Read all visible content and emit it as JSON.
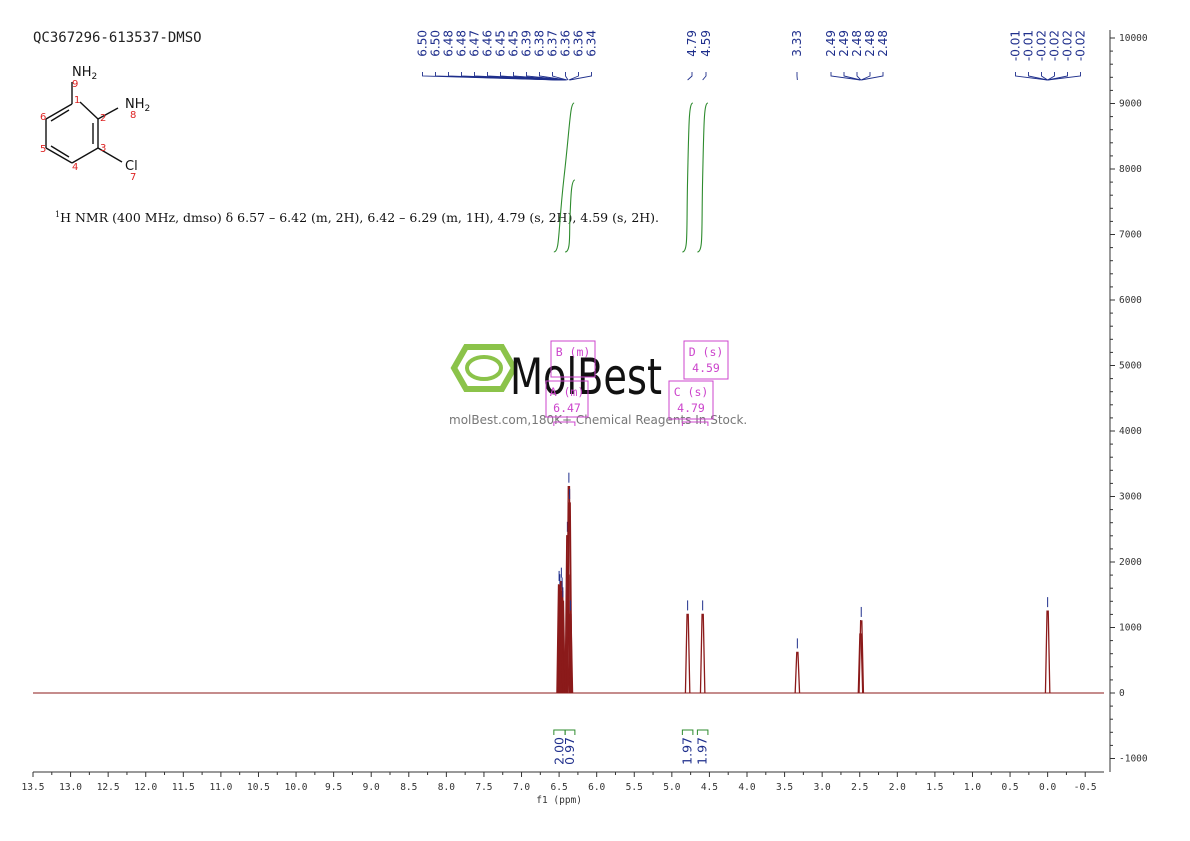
{
  "sample_title": "QC367296-613537-DMSO",
  "structure": {
    "atoms": [
      {
        "text": "NH",
        "sub": "2",
        "num": "9"
      },
      {
        "text": "NH",
        "sub": "2",
        "num": "8"
      },
      {
        "text": "Cl",
        "sub": "",
        "num": "7"
      }
    ],
    "ring_numbers": [
      "1",
      "2",
      "3",
      "4",
      "5",
      "6"
    ]
  },
  "nmr_description": {
    "sup": "1",
    "text": "H NMR (400 MHz, dmso) δ 6.57 – 6.42 (m, 2H), 6.42 – 6.29 (m, 1H), 4.79 (s, 2H), 4.59 (s, 2H)."
  },
  "watermark": {
    "brand": "MolBest",
    "tagline": "molBest.com,180K+ Chemical Reagents In Stock."
  },
  "colors": {
    "spectrum": "#8b1a1a",
    "peak_labels": "#1f2f8c",
    "integral": "#2e8b2e",
    "multiplet_box": "#cc44cc",
    "watermark": "#8bc34a"
  },
  "chart_data": {
    "type": "line",
    "xlabel": "f1 (ppm)",
    "x_ticks": [
      "13.5",
      "13.0",
      "12.5",
      "12.0",
      "11.5",
      "11.0",
      "10.5",
      "10.0",
      "9.5",
      "9.0",
      "8.5",
      "8.0",
      "7.5",
      "7.0",
      "6.5",
      "6.0",
      "5.5",
      "5.0",
      "4.5",
      "4.0",
      "3.5",
      "3.0",
      "2.5",
      "2.0",
      "1.5",
      "1.0",
      "0.5",
      "0.0",
      "-0.5"
    ],
    "xlim": [
      13.5,
      -0.75
    ],
    "y_ticks": [
      "10000",
      "9000",
      "8000",
      "7000",
      "6000",
      "5000",
      "4000",
      "3000",
      "2000",
      "1000",
      "0",
      "-1000"
    ],
    "ylim": [
      -1200,
      10100
    ],
    "peaks": [
      {
        "ppm": 6.5,
        "height": 1650
      },
      {
        "ppm": 6.49,
        "height": 1600
      },
      {
        "ppm": 6.48,
        "height": 1500
      },
      {
        "ppm": 6.47,
        "height": 1700
      },
      {
        "ppm": 6.46,
        "height": 1550
      },
      {
        "ppm": 6.45,
        "height": 1400
      },
      {
        "ppm": 6.39,
        "height": 2400
      },
      {
        "ppm": 6.38,
        "height": 1800
      },
      {
        "ppm": 6.37,
        "height": 3150
      },
      {
        "ppm": 6.36,
        "height": 2900
      },
      {
        "ppm": 6.35,
        "height": 1200
      },
      {
        "ppm": 4.79,
        "height": 1200
      },
      {
        "ppm": 4.59,
        "height": 1200
      },
      {
        "ppm": 3.33,
        "height": 620
      },
      {
        "ppm": 2.49,
        "height": 900
      },
      {
        "ppm": 2.48,
        "height": 1100
      },
      {
        "ppm": 0.0,
        "height": 1250
      }
    ],
    "peak_label_groups": [
      {
        "labels": [
          "6.50",
          "6.50",
          "6.48",
          "6.48",
          "6.47",
          "6.46",
          "6.45",
          "6.45",
          "6.39",
          "6.38",
          "6.37",
          "6.36",
          "6.36",
          "6.34"
        ],
        "target_ppm": [
          6.5,
          6.36
        ]
      },
      {
        "labels": [
          "4.79"
        ],
        "target_ppm": [
          4.79,
          4.79
        ]
      },
      {
        "labels": [
          "4.59"
        ],
        "target_ppm": [
          4.59,
          4.59
        ]
      },
      {
        "labels": [
          "3.33"
        ],
        "target_ppm": [
          3.33,
          3.33
        ]
      },
      {
        "labels": [
          "2.49",
          "2.49",
          "2.48",
          "2.48",
          "2.48"
        ],
        "target_ppm": [
          2.49,
          2.48
        ]
      },
      {
        "labels": [
          "-0.01",
          "-0.01",
          "-0.02",
          "-0.02",
          "-0.02",
          "-0.02"
        ],
        "target_ppm": [
          0.0,
          0.0
        ]
      }
    ],
    "multiplets": [
      {
        "letter": "B",
        "type": "(m)",
        "value": "",
        "ppm": 6.36
      },
      {
        "letter": "A",
        "type": "(m)",
        "value": "6.47",
        "ppm": 6.47
      },
      {
        "letter": "D",
        "type": "(s)",
        "value": "4.59",
        "ppm": 4.59
      },
      {
        "letter": "C",
        "type": "(s)",
        "value": "4.79",
        "ppm": 4.79
      }
    ],
    "integrals": [
      {
        "from": 6.57,
        "to": 6.42,
        "value": "2.00"
      },
      {
        "from": 6.42,
        "to": 6.29,
        "value": "0.97"
      },
      {
        "from": 4.86,
        "to": 4.72,
        "value": "1.97"
      },
      {
        "from": 4.66,
        "to": 4.52,
        "value": "1.97"
      }
    ]
  }
}
